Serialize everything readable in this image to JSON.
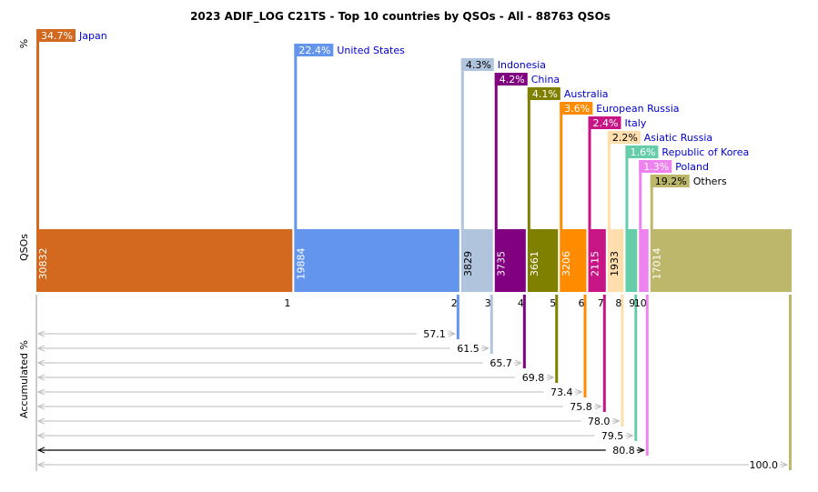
{
  "chart_data": {
    "type": "bar",
    "title": "2023 ADIF_LOG C21TS - Top 10 countries by QSOs - All - 88763 QSOs",
    "axis_labels": {
      "percent": "%",
      "qsos": "QSOs",
      "accumulated": "Accumulated %"
    },
    "total_qsos": 88763,
    "series": [
      {
        "rank": "1",
        "name": "Japan",
        "qsos": 30832,
        "pct": "34.7%",
        "cum": "",
        "color": "#d2691e"
      },
      {
        "rank": "2",
        "name": "United States",
        "qsos": 19884,
        "pct": "22.4%",
        "cum": "57.1",
        "color": "#6495ed"
      },
      {
        "rank": "3",
        "name": "Indonesia",
        "qsos": 3829,
        "pct": "4.3%",
        "cum": "61.5",
        "color": "#b0c4de"
      },
      {
        "rank": "4",
        "name": "China",
        "qsos": 3735,
        "pct": "4.2%",
        "cum": "65.7",
        "color": "#800080"
      },
      {
        "rank": "5",
        "name": "Australia",
        "qsos": 3661,
        "pct": "4.1%",
        "cum": "69.8",
        "color": "#808000"
      },
      {
        "rank": "6",
        "name": "European Russia",
        "qsos": 3206,
        "pct": "3.6%",
        "cum": "73.4",
        "color": "#ff8c00"
      },
      {
        "rank": "7",
        "name": "Italy",
        "qsos": 2115,
        "pct": "2.4%",
        "cum": "75.8",
        "color": "#c71585"
      },
      {
        "rank": "8",
        "name": "Asiatic Russia",
        "qsos": 1933,
        "pct": "2.2%",
        "cum": "78.0",
        "color": "#ffdead"
      },
      {
        "rank": "9",
        "name": "Republic of Korea",
        "qsos": 1406,
        "pct": "1.6%",
        "cum": "79.5",
        "color": "#66cdaa"
      },
      {
        "rank": "10",
        "name": "Poland",
        "qsos": 1148,
        "pct": "1.3%",
        "cum": "80.8",
        "color": "#ee82ee"
      },
      {
        "rank": "",
        "name": "Others",
        "qsos": 17014,
        "pct": "19.2%",
        "cum": "100.0",
        "color": "#bdb76b"
      }
    ],
    "bar_value_labels": [
      "30832",
      "19884",
      "3829",
      "3735",
      "3661",
      "3206",
      "2115",
      "1933",
      "",
      "",
      "17014"
    ],
    "grid": false,
    "legend": "labels-inline"
  }
}
